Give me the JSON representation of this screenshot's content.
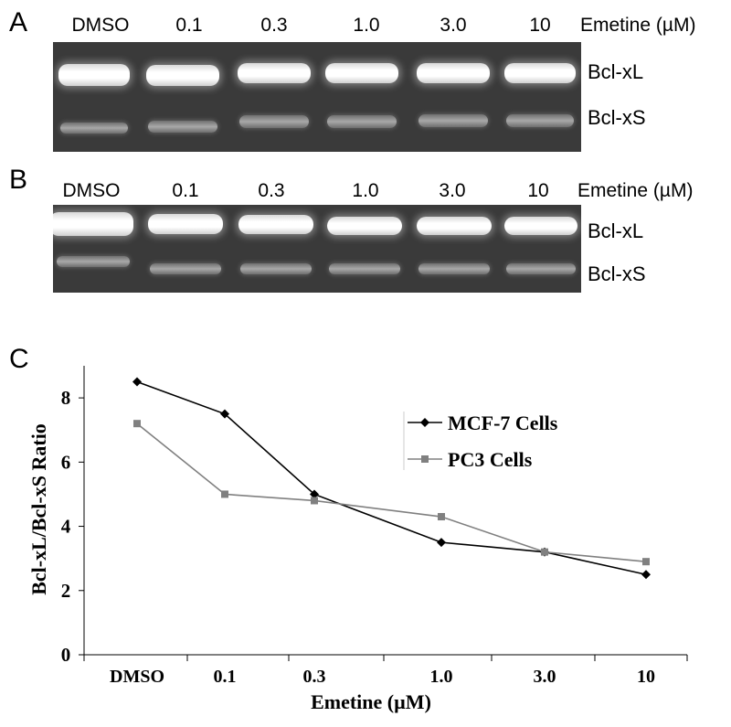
{
  "panels": {
    "a": {
      "letter": "A",
      "lanes": [
        "DMSO",
        "0.1",
        "0.3",
        "1.0",
        "3.0",
        "10"
      ],
      "conc_title": "Emetine (µM)",
      "bands": [
        "Bcl-xL",
        "Bcl-xS"
      ]
    },
    "b": {
      "letter": "B",
      "lanes": [
        "DMSO",
        "0.1",
        "0.3",
        "1.0",
        "3.0",
        "10"
      ],
      "conc_title": "Emetine (µM)",
      "bands": [
        "Bcl-xL",
        "Bcl-xS"
      ]
    },
    "c": {
      "letter": "C"
    }
  },
  "chart_data": {
    "type": "line",
    "categories": [
      "DMSO",
      "0.1",
      "0.3",
      "1.0",
      "3.0",
      "10"
    ],
    "xlabel": "Emetine (µM)",
    "ylabel": "Bcl-xL/Bcl-xS Ratio",
    "ylim": [
      0,
      9
    ],
    "yticks": [
      "0",
      "2",
      "4",
      "6",
      "8"
    ],
    "legend_position": "top-right",
    "grid": false,
    "series": [
      {
        "name": "MCF-7 Cells",
        "marker": "diamond",
        "color": "#000000",
        "values": [
          8.5,
          7.5,
          5.0,
          3.5,
          3.2,
          2.5
        ]
      },
      {
        "name": "PC3 Cells",
        "marker": "square",
        "color": "#808080",
        "values": [
          7.2,
          5.0,
          4.8,
          4.3,
          3.2,
          2.9
        ]
      }
    ]
  }
}
